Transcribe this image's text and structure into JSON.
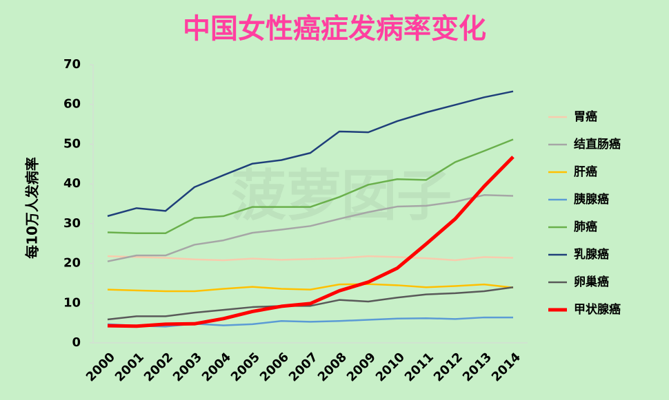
{
  "chart_data": {
    "type": "line",
    "title": "中国女性癌症发病率变化",
    "watermark": "菠萝囡子",
    "y_label": "每10万人发病率",
    "categories": [
      "2000",
      "2001",
      "2002",
      "2003",
      "2004",
      "2005",
      "2006",
      "2007",
      "2008",
      "2009",
      "2010",
      "2011",
      "2012",
      "2013",
      "2014"
    ],
    "ylim": [
      0,
      70
    ],
    "yticks": [
      0,
      10,
      20,
      30,
      40,
      50,
      60,
      70
    ],
    "grid": false,
    "legend": "right",
    "series": [
      {
        "name": "胃癌",
        "color": "#f8cbad",
        "line_width": 2.5,
        "values": [
          21.8,
          21.6,
          21.4,
          21.0,
          20.8,
          21.2,
          20.9,
          21.1,
          21.3,
          21.8,
          21.6,
          21.3,
          20.8,
          21.6,
          21.4
        ]
      },
      {
        "name": "结直肠癌",
        "color": "#a6a6a6",
        "line_width": 2.5,
        "values": [
          20.5,
          22.0,
          22.0,
          24.7,
          25.8,
          27.7,
          28.5,
          29.4,
          31.2,
          32.9,
          34.3,
          34.5,
          35.5,
          37.2,
          37.0
        ]
      },
      {
        "name": "肝癌",
        "color": "#ffc000",
        "line_width": 2.5,
        "values": [
          13.4,
          13.2,
          13.0,
          13.0,
          13.6,
          14.1,
          13.6,
          13.4,
          14.7,
          14.8,
          14.5,
          14.0,
          14.3,
          14.7,
          13.9
        ]
      },
      {
        "name": "胰腺癌",
        "color": "#5b9bd5",
        "line_width": 2.5,
        "values": [
          4.7,
          4.3,
          4.1,
          4.8,
          4.4,
          4.7,
          5.5,
          5.3,
          5.5,
          5.8,
          6.1,
          6.2,
          6.0,
          6.4,
          6.4
        ]
      },
      {
        "name": "肺癌",
        "color": "#6ab04c",
        "line_width": 2.5,
        "values": [
          27.8,
          27.6,
          27.6,
          31.4,
          31.9,
          34.2,
          34.2,
          34.2,
          36.7,
          39.8,
          41.2,
          41.0,
          45.5,
          48.3,
          51.2
        ]
      },
      {
        "name": "乳腺癌",
        "color": "#1f3f7a",
        "line_width": 2.5,
        "values": [
          31.9,
          33.9,
          33.2,
          39.2,
          42.2,
          45.1,
          46.0,
          47.8,
          53.2,
          53.0,
          55.8,
          58.0,
          59.9,
          61.8,
          63.3
        ]
      },
      {
        "name": "卵巢癌",
        "color": "#595959",
        "line_width": 2.5,
        "values": [
          5.9,
          6.7,
          6.7,
          7.6,
          8.3,
          9.0,
          9.3,
          9.3,
          10.8,
          10.4,
          11.4,
          12.2,
          12.5,
          13.0,
          14.0
        ]
      },
      {
        "name": "甲状腺癌",
        "color": "#ff0000",
        "line_width": 5,
        "values": [
          4.3,
          4.2,
          4.7,
          4.8,
          6.1,
          7.9,
          9.2,
          9.9,
          13.1,
          15.3,
          18.8,
          24.9,
          31.2,
          39.4,
          46.8
        ]
      }
    ]
  }
}
